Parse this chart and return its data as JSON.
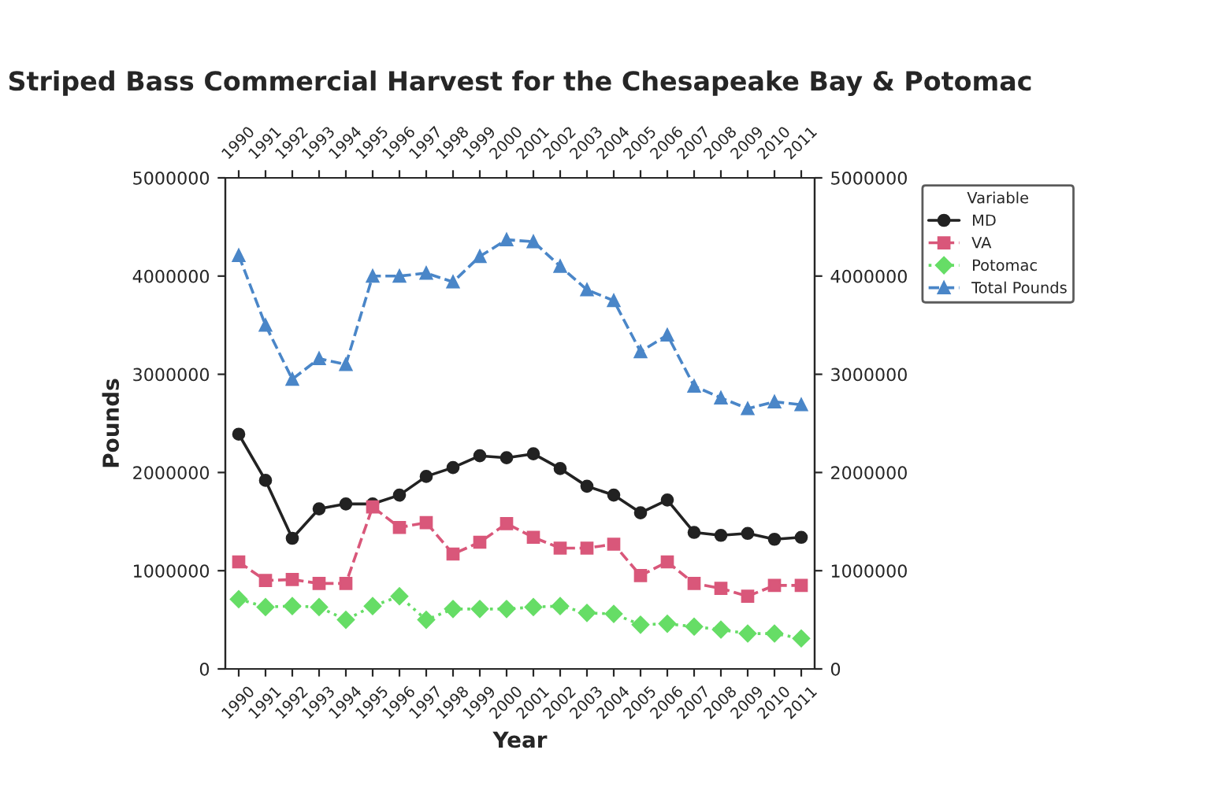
{
  "chart_data": {
    "type": "line",
    "title": "Striped Bass Commercial Harvest for the Chesapeake Bay & Potomac",
    "xlabel": "Year",
    "ylabel": "Pounds",
    "categories": [
      "1990",
      "1991",
      "1992",
      "1993",
      "1994",
      "1995",
      "1996",
      "1997",
      "1998",
      "1999",
      "2000",
      "2001",
      "2002",
      "2003",
      "2004",
      "2005",
      "2006",
      "2007",
      "2008",
      "2009",
      "2010",
      "2011"
    ],
    "series": [
      {
        "name": "MD",
        "color": "#222222",
        "marker": "circle",
        "line_style": "solid",
        "values": [
          2390000,
          1920000,
          1330000,
          1630000,
          1680000,
          1680000,
          1770000,
          1960000,
          2050000,
          2170000,
          2150000,
          2190000,
          2040000,
          1860000,
          1770000,
          1590000,
          1720000,
          1390000,
          1360000,
          1380000,
          1320000,
          1340000
        ]
      },
      {
        "name": "VA",
        "color": "#d9577a",
        "marker": "square",
        "line_style": "dashed",
        "values": [
          1090000,
          900000,
          910000,
          870000,
          870000,
          1650000,
          1440000,
          1490000,
          1170000,
          1290000,
          1480000,
          1340000,
          1230000,
          1230000,
          1270000,
          950000,
          1090000,
          870000,
          820000,
          740000,
          850000,
          850000
        ]
      },
      {
        "name": "Potomac",
        "color": "#66dd66",
        "marker": "diamond",
        "line_style": "dotted",
        "values": [
          710000,
          630000,
          640000,
          630000,
          500000,
          640000,
          740000,
          500000,
          610000,
          610000,
          610000,
          630000,
          640000,
          570000,
          560000,
          450000,
          460000,
          430000,
          400000,
          360000,
          360000,
          310000
        ]
      },
      {
        "name": "Total Pounds",
        "color": "#4a86c8",
        "marker": "triangle",
        "line_style": "dashed",
        "values": [
          4210000,
          3500000,
          2950000,
          3160000,
          3100000,
          4000000,
          4000000,
          4030000,
          3940000,
          4200000,
          4370000,
          4350000,
          4100000,
          3860000,
          3750000,
          3230000,
          3400000,
          2880000,
          2760000,
          2650000,
          2720000,
          2690000
        ]
      }
    ],
    "ylim": [
      0,
      5000000
    ],
    "yticks": [
      0,
      1000000,
      2000000,
      3000000,
      4000000,
      5000000
    ],
    "y2lim": [
      0,
      5000000
    ],
    "y2ticks": [
      0,
      1000000,
      2000000,
      3000000,
      4000000,
      5000000
    ],
    "legend": "right",
    "legend_title": "Variable",
    "grid": false
  }
}
